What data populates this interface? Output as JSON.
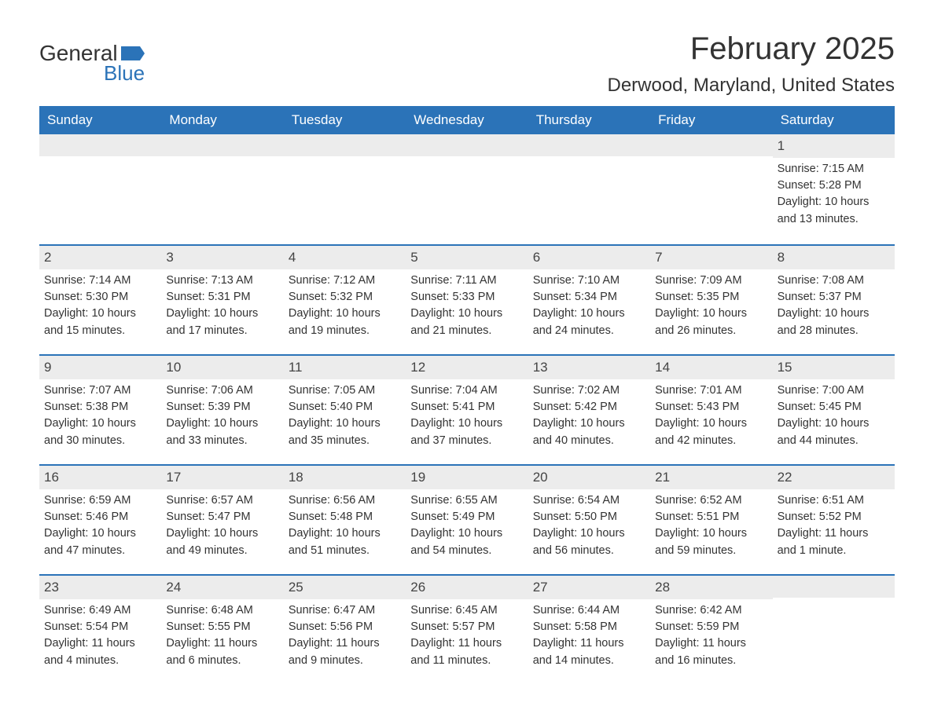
{
  "logo": {
    "text_general": "General",
    "text_blue": "Blue",
    "mark_color": "#2b73b8"
  },
  "header": {
    "month_title": "February 2025",
    "location": "Derwood, Maryland, United States"
  },
  "weekdays": [
    "Sunday",
    "Monday",
    "Tuesday",
    "Wednesday",
    "Thursday",
    "Friday",
    "Saturday"
  ],
  "colors": {
    "header_bg": "#2b73b8",
    "header_text": "#ffffff",
    "day_bar_bg": "#ececec",
    "text": "#333333",
    "border": "#2b73b8"
  },
  "weeks": [
    [
      null,
      null,
      null,
      null,
      null,
      null,
      {
        "num": "1",
        "sunrise": "Sunrise: 7:15 AM",
        "sunset": "Sunset: 5:28 PM",
        "daylight1": "Daylight: 10 hours",
        "daylight2": "and 13 minutes."
      }
    ],
    [
      {
        "num": "2",
        "sunrise": "Sunrise: 7:14 AM",
        "sunset": "Sunset: 5:30 PM",
        "daylight1": "Daylight: 10 hours",
        "daylight2": "and 15 minutes."
      },
      {
        "num": "3",
        "sunrise": "Sunrise: 7:13 AM",
        "sunset": "Sunset: 5:31 PM",
        "daylight1": "Daylight: 10 hours",
        "daylight2": "and 17 minutes."
      },
      {
        "num": "4",
        "sunrise": "Sunrise: 7:12 AM",
        "sunset": "Sunset: 5:32 PM",
        "daylight1": "Daylight: 10 hours",
        "daylight2": "and 19 minutes."
      },
      {
        "num": "5",
        "sunrise": "Sunrise: 7:11 AM",
        "sunset": "Sunset: 5:33 PM",
        "daylight1": "Daylight: 10 hours",
        "daylight2": "and 21 minutes."
      },
      {
        "num": "6",
        "sunrise": "Sunrise: 7:10 AM",
        "sunset": "Sunset: 5:34 PM",
        "daylight1": "Daylight: 10 hours",
        "daylight2": "and 24 minutes."
      },
      {
        "num": "7",
        "sunrise": "Sunrise: 7:09 AM",
        "sunset": "Sunset: 5:35 PM",
        "daylight1": "Daylight: 10 hours",
        "daylight2": "and 26 minutes."
      },
      {
        "num": "8",
        "sunrise": "Sunrise: 7:08 AM",
        "sunset": "Sunset: 5:37 PM",
        "daylight1": "Daylight: 10 hours",
        "daylight2": "and 28 minutes."
      }
    ],
    [
      {
        "num": "9",
        "sunrise": "Sunrise: 7:07 AM",
        "sunset": "Sunset: 5:38 PM",
        "daylight1": "Daylight: 10 hours",
        "daylight2": "and 30 minutes."
      },
      {
        "num": "10",
        "sunrise": "Sunrise: 7:06 AM",
        "sunset": "Sunset: 5:39 PM",
        "daylight1": "Daylight: 10 hours",
        "daylight2": "and 33 minutes."
      },
      {
        "num": "11",
        "sunrise": "Sunrise: 7:05 AM",
        "sunset": "Sunset: 5:40 PM",
        "daylight1": "Daylight: 10 hours",
        "daylight2": "and 35 minutes."
      },
      {
        "num": "12",
        "sunrise": "Sunrise: 7:04 AM",
        "sunset": "Sunset: 5:41 PM",
        "daylight1": "Daylight: 10 hours",
        "daylight2": "and 37 minutes."
      },
      {
        "num": "13",
        "sunrise": "Sunrise: 7:02 AM",
        "sunset": "Sunset: 5:42 PM",
        "daylight1": "Daylight: 10 hours",
        "daylight2": "and 40 minutes."
      },
      {
        "num": "14",
        "sunrise": "Sunrise: 7:01 AM",
        "sunset": "Sunset: 5:43 PM",
        "daylight1": "Daylight: 10 hours",
        "daylight2": "and 42 minutes."
      },
      {
        "num": "15",
        "sunrise": "Sunrise: 7:00 AM",
        "sunset": "Sunset: 5:45 PM",
        "daylight1": "Daylight: 10 hours",
        "daylight2": "and 44 minutes."
      }
    ],
    [
      {
        "num": "16",
        "sunrise": "Sunrise: 6:59 AM",
        "sunset": "Sunset: 5:46 PM",
        "daylight1": "Daylight: 10 hours",
        "daylight2": "and 47 minutes."
      },
      {
        "num": "17",
        "sunrise": "Sunrise: 6:57 AM",
        "sunset": "Sunset: 5:47 PM",
        "daylight1": "Daylight: 10 hours",
        "daylight2": "and 49 minutes."
      },
      {
        "num": "18",
        "sunrise": "Sunrise: 6:56 AM",
        "sunset": "Sunset: 5:48 PM",
        "daylight1": "Daylight: 10 hours",
        "daylight2": "and 51 minutes."
      },
      {
        "num": "19",
        "sunrise": "Sunrise: 6:55 AM",
        "sunset": "Sunset: 5:49 PM",
        "daylight1": "Daylight: 10 hours",
        "daylight2": "and 54 minutes."
      },
      {
        "num": "20",
        "sunrise": "Sunrise: 6:54 AM",
        "sunset": "Sunset: 5:50 PM",
        "daylight1": "Daylight: 10 hours",
        "daylight2": "and 56 minutes."
      },
      {
        "num": "21",
        "sunrise": "Sunrise: 6:52 AM",
        "sunset": "Sunset: 5:51 PM",
        "daylight1": "Daylight: 10 hours",
        "daylight2": "and 59 minutes."
      },
      {
        "num": "22",
        "sunrise": "Sunrise: 6:51 AM",
        "sunset": "Sunset: 5:52 PM",
        "daylight1": "Daylight: 11 hours",
        "daylight2": "and 1 minute."
      }
    ],
    [
      {
        "num": "23",
        "sunrise": "Sunrise: 6:49 AM",
        "sunset": "Sunset: 5:54 PM",
        "daylight1": "Daylight: 11 hours",
        "daylight2": "and 4 minutes."
      },
      {
        "num": "24",
        "sunrise": "Sunrise: 6:48 AM",
        "sunset": "Sunset: 5:55 PM",
        "daylight1": "Daylight: 11 hours",
        "daylight2": "and 6 minutes."
      },
      {
        "num": "25",
        "sunrise": "Sunrise: 6:47 AM",
        "sunset": "Sunset: 5:56 PM",
        "daylight1": "Daylight: 11 hours",
        "daylight2": "and 9 minutes."
      },
      {
        "num": "26",
        "sunrise": "Sunrise: 6:45 AM",
        "sunset": "Sunset: 5:57 PM",
        "daylight1": "Daylight: 11 hours",
        "daylight2": "and 11 minutes."
      },
      {
        "num": "27",
        "sunrise": "Sunrise: 6:44 AM",
        "sunset": "Sunset: 5:58 PM",
        "daylight1": "Daylight: 11 hours",
        "daylight2": "and 14 minutes."
      },
      {
        "num": "28",
        "sunrise": "Sunrise: 6:42 AM",
        "sunset": "Sunset: 5:59 PM",
        "daylight1": "Daylight: 11 hours",
        "daylight2": "and 16 minutes."
      },
      null
    ]
  ]
}
